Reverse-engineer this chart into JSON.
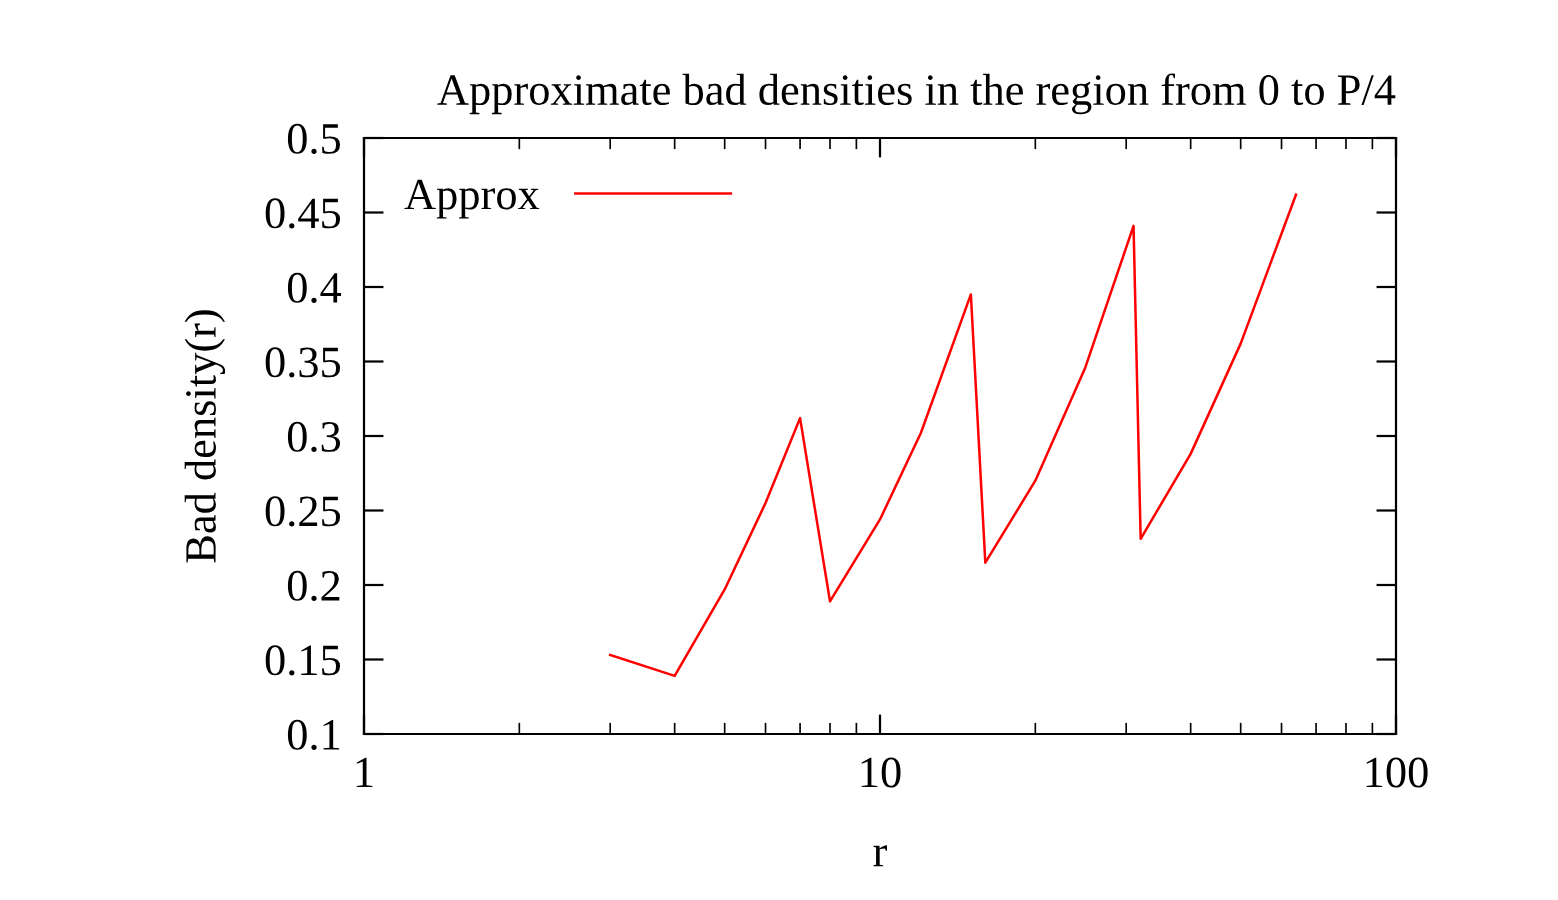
{
  "chart_data": {
    "type": "line",
    "title": "Approximate bad densities in the region from 0 to P/4",
    "xlabel": "r",
    "ylabel": "Bad density(r)",
    "log": "x",
    "xlim": [
      1,
      100
    ],
    "xticks": [
      1,
      10,
      100
    ],
    "ylim": [
      0.1,
      0.5
    ],
    "yticks": [
      0.1,
      0.15,
      0.2,
      0.25,
      0.3,
      0.35,
      0.4,
      0.45,
      0.5
    ],
    "grid": false,
    "legend": "top left",
    "marker": "none",
    "line_style": "solid",
    "series": [
      {
        "name": "Approx",
        "color": "#ff0000",
        "x": [
          3,
          4,
          5,
          6,
          7,
          8,
          10,
          12,
          15,
          16,
          20,
          25,
          31,
          32,
          40,
          50,
          64
        ],
        "values": [
          0.153,
          0.139,
          0.197,
          0.255,
          0.312,
          0.189,
          0.244,
          0.302,
          0.395,
          0.215,
          0.27,
          0.346,
          0.441,
          0.231,
          0.288,
          0.362,
          0.462
        ]
      }
    ]
  }
}
